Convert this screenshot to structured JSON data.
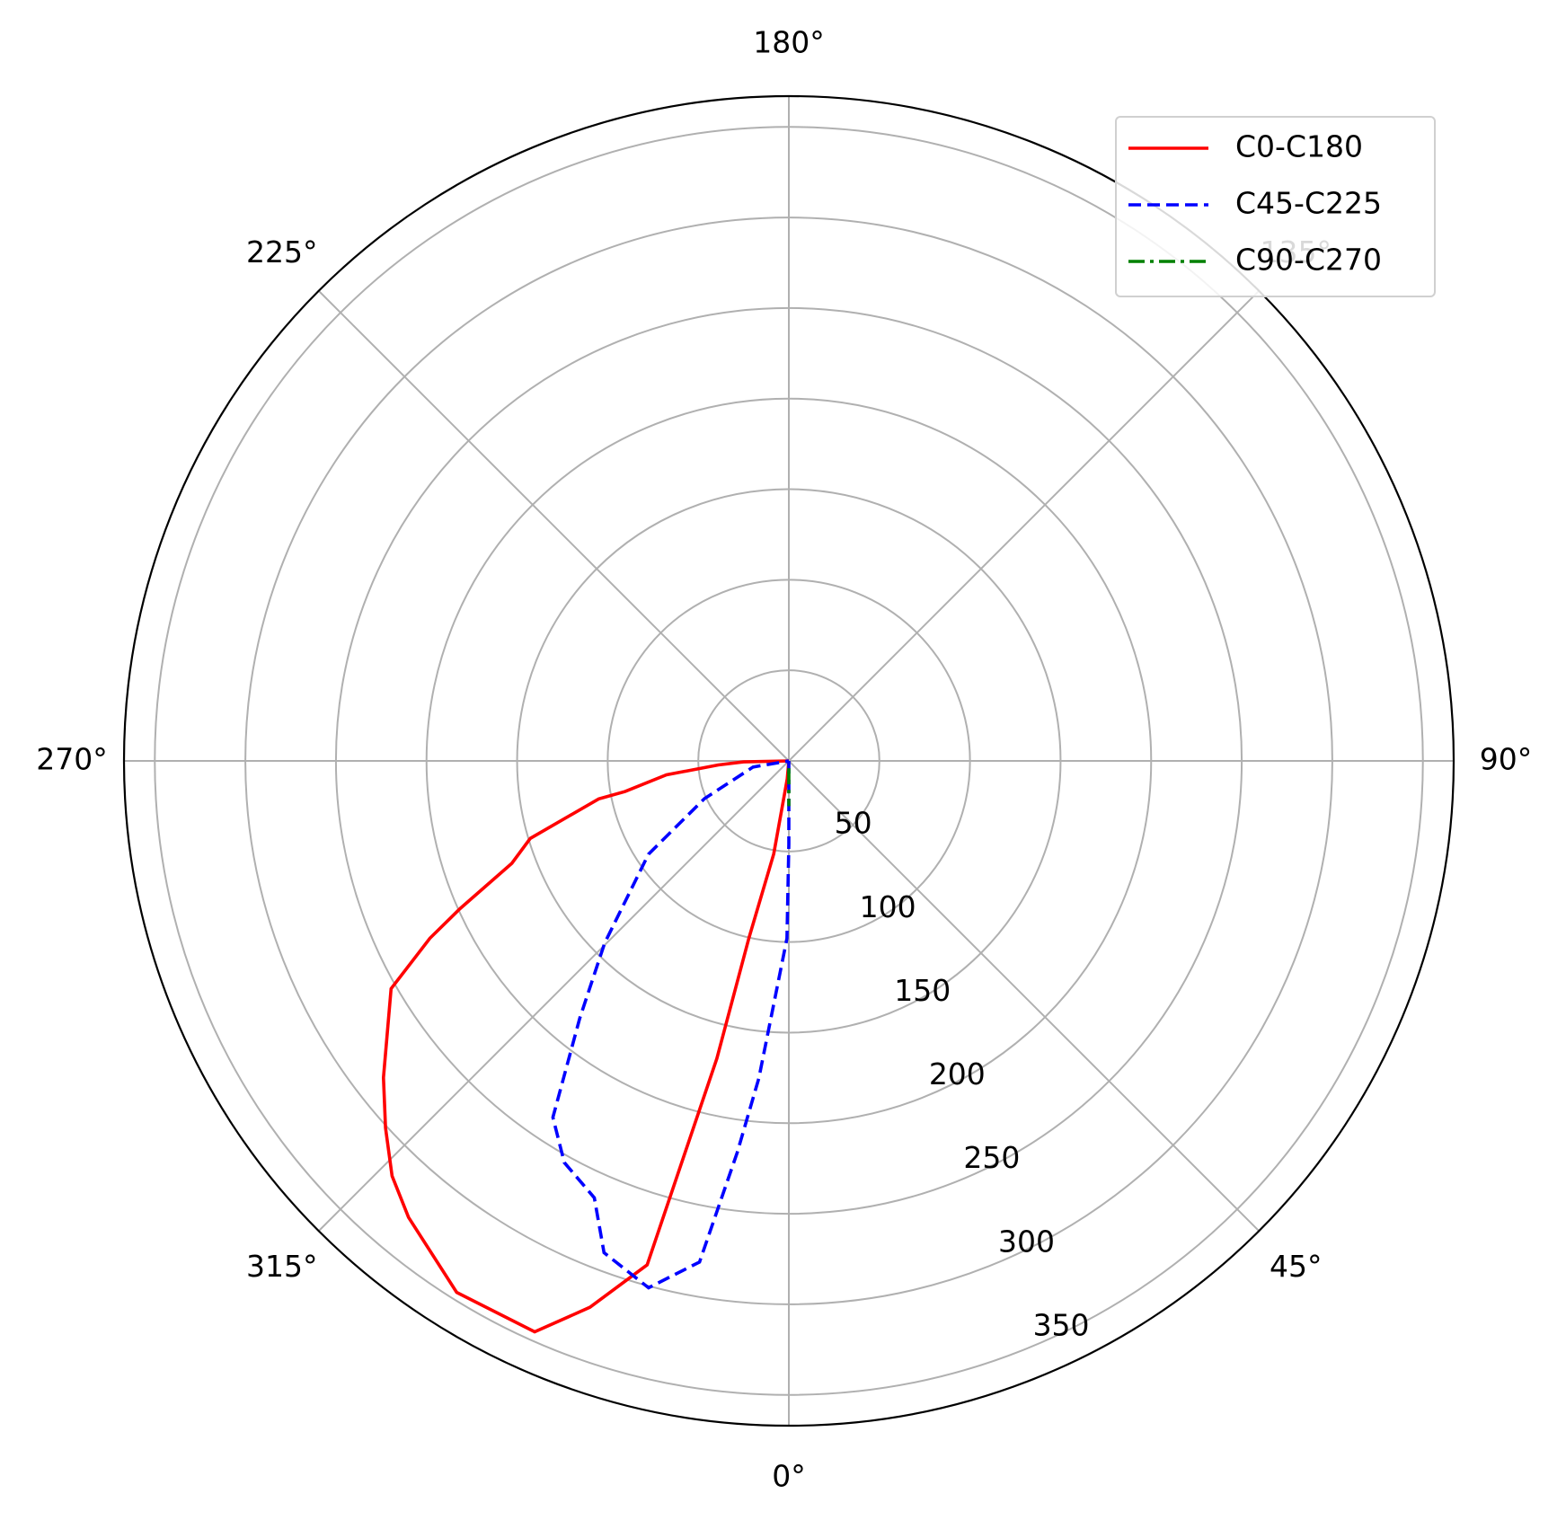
{
  "chart_data": {
    "type": "polar",
    "theta_zero_location": "S",
    "theta_direction": "counterclockwise",
    "rlim": [
      0,
      367
    ],
    "rticks": [
      50,
      100,
      150,
      200,
      250,
      300,
      350
    ],
    "xticks": [
      {
        "value": 0,
        "label": "0°"
      },
      {
        "value": 45,
        "label": "45°"
      },
      {
        "value": 90,
        "label": "90°"
      },
      {
        "value": 135,
        "label": "135°"
      },
      {
        "value": 180,
        "label": "180°"
      },
      {
        "value": 225,
        "label": "225°"
      },
      {
        "value": 270,
        "label": "270°"
      },
      {
        "value": 315,
        "label": "315°"
      }
    ],
    "grid": true,
    "legend": "upper right",
    "series": [
      {
        "name": "C0-C180",
        "color": "#ff0000",
        "style": "solid",
        "x": [
          0,
          355,
          350.8,
          347.3,
          346.4,
          344.3,
          340,
          336,
          328,
          320.2,
          316.3,
          312.3,
          308,
          299.8,
          296.3,
          294.2,
          290.3,
          286.7,
          281.3,
          280.6,
          276.5,
          273.3,
          271.3,
          270
        ],
        "values": [
          0,
          10,
          52,
          100,
          169,
          289,
          321,
          345,
          346,
          328,
          317,
          301,
          284,
          253,
          221,
          199,
          163,
          149,
          107,
          92,
          68,
          39,
          25,
          0
        ]
      },
      {
        "name": "C45-C225",
        "color": "#0000ff",
        "style": "dashed",
        "x": [
          0,
          0,
          359.4,
          354.6,
          352.5,
          349.9,
          345.1,
          339.4,
          336,
          330.8,
          326.5,
          320.9,
          314.7,
          303.6,
          294.1,
          279.7,
          270
        ],
        "values": [
          0,
          46,
          98,
          176,
          218,
          281,
          301,
          290,
          264,
          254,
          236,
          183,
          143,
          93,
          51,
          20,
          0
        ]
      },
      {
        "name": "C90-C270",
        "color": "#008000",
        "style": "dashdot",
        "x": [
          0,
          0
        ],
        "values": [
          4,
          25
        ]
      }
    ]
  }
}
